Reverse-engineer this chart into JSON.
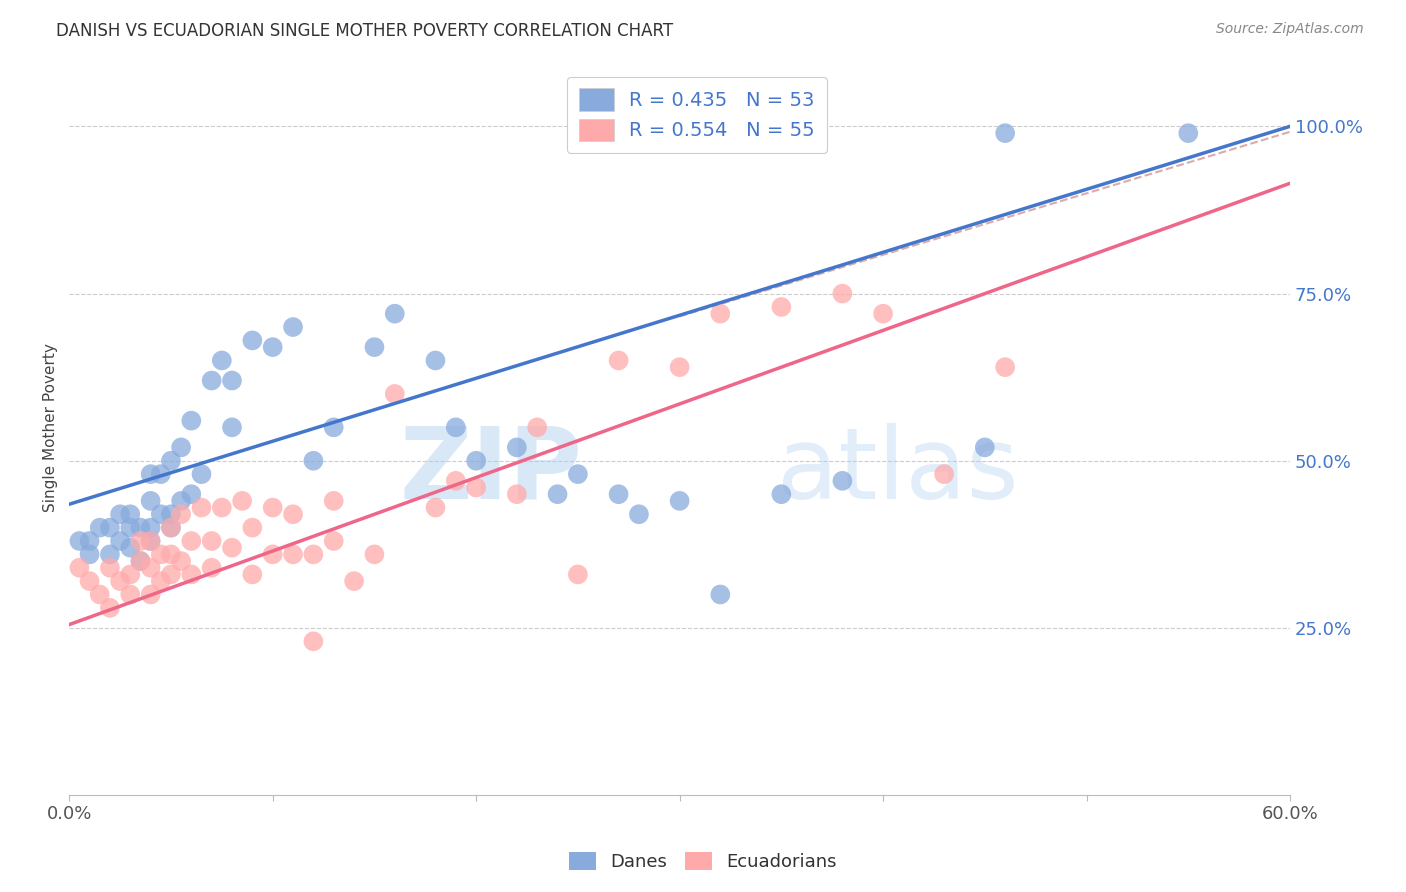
{
  "title": "DANISH VS ECUADORIAN SINGLE MOTHER POVERTY CORRELATION CHART",
  "source": "Source: ZipAtlas.com",
  "ylabel": "Single Mother Poverty",
  "y_ticks": [
    0.25,
    0.5,
    0.75,
    1.0
  ],
  "y_tick_labels": [
    "25.0%",
    "50.0%",
    "75.0%",
    "100.0%"
  ],
  "xmin": 0.0,
  "xmax": 0.6,
  "ymin": 0.0,
  "ymax": 1.1,
  "danes_R": 0.435,
  "danes_N": 53,
  "ecuador_R": 0.554,
  "ecuador_N": 55,
  "blue_color": "#88AADD",
  "pink_color": "#FFAAAA",
  "blue_line_color": "#4477CC",
  "pink_line_color": "#EE6688",
  "danes_x": [
    0.005,
    0.01,
    0.01,
    0.015,
    0.02,
    0.02,
    0.025,
    0.025,
    0.03,
    0.03,
    0.03,
    0.035,
    0.035,
    0.04,
    0.04,
    0.04,
    0.04,
    0.045,
    0.045,
    0.05,
    0.05,
    0.05,
    0.055,
    0.055,
    0.06,
    0.06,
    0.065,
    0.07,
    0.075,
    0.08,
    0.08,
    0.09,
    0.1,
    0.11,
    0.12,
    0.13,
    0.15,
    0.16,
    0.18,
    0.19,
    0.2,
    0.22,
    0.24,
    0.25,
    0.27,
    0.28,
    0.3,
    0.32,
    0.35,
    0.38,
    0.45,
    0.46,
    0.55
  ],
  "danes_y": [
    0.38,
    0.36,
    0.38,
    0.4,
    0.36,
    0.4,
    0.38,
    0.42,
    0.37,
    0.4,
    0.42,
    0.35,
    0.4,
    0.38,
    0.4,
    0.44,
    0.48,
    0.42,
    0.48,
    0.4,
    0.42,
    0.5,
    0.44,
    0.52,
    0.45,
    0.56,
    0.48,
    0.62,
    0.65,
    0.55,
    0.62,
    0.68,
    0.67,
    0.7,
    0.5,
    0.55,
    0.67,
    0.72,
    0.65,
    0.55,
    0.5,
    0.52,
    0.45,
    0.48,
    0.45,
    0.42,
    0.44,
    0.3,
    0.45,
    0.47,
    0.52,
    0.99,
    0.99
  ],
  "ecuador_x": [
    0.005,
    0.01,
    0.015,
    0.02,
    0.02,
    0.025,
    0.03,
    0.03,
    0.035,
    0.035,
    0.04,
    0.04,
    0.04,
    0.045,
    0.045,
    0.05,
    0.05,
    0.05,
    0.055,
    0.055,
    0.06,
    0.06,
    0.065,
    0.07,
    0.07,
    0.075,
    0.08,
    0.085,
    0.09,
    0.09,
    0.1,
    0.1,
    0.11,
    0.11,
    0.12,
    0.12,
    0.13,
    0.13,
    0.14,
    0.15,
    0.16,
    0.18,
    0.19,
    0.2,
    0.22,
    0.23,
    0.25,
    0.27,
    0.3,
    0.32,
    0.35,
    0.38,
    0.4,
    0.43,
    0.46
  ],
  "ecuador_y": [
    0.34,
    0.32,
    0.3,
    0.28,
    0.34,
    0.32,
    0.3,
    0.33,
    0.35,
    0.38,
    0.3,
    0.34,
    0.38,
    0.32,
    0.36,
    0.33,
    0.36,
    0.4,
    0.35,
    0.42,
    0.33,
    0.38,
    0.43,
    0.34,
    0.38,
    0.43,
    0.37,
    0.44,
    0.33,
    0.4,
    0.36,
    0.43,
    0.36,
    0.42,
    0.23,
    0.36,
    0.38,
    0.44,
    0.32,
    0.36,
    0.6,
    0.43,
    0.47,
    0.46,
    0.45,
    0.55,
    0.33,
    0.65,
    0.64,
    0.72,
    0.73,
    0.75,
    0.72,
    0.48,
    0.64
  ],
  "background_color": "#ffffff",
  "grid_color": "#dddddd",
  "watermark_zip": "ZIP",
  "watermark_atlas": "atlas",
  "legend_labels": [
    "Danes",
    "Ecuadorians"
  ],
  "blue_intercept": 0.435,
  "blue_slope": 0.942,
  "pink_intercept": 0.255,
  "pink_slope": 1.1,
  "dash_intercept": 0.44,
  "dash_slope": 0.92
}
